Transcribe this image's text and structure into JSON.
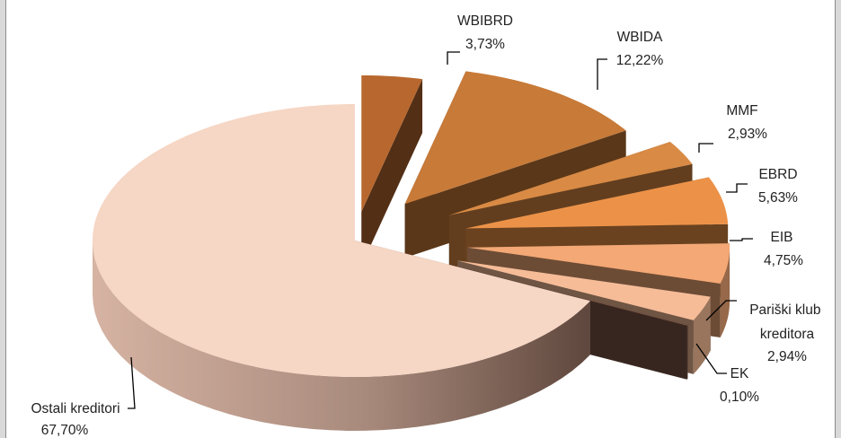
{
  "chart_data": {
    "type": "pie",
    "style": "3d-exploded",
    "legend": "none",
    "categories": [
      "WBIBRD",
      "WBIDA",
      "MMF",
      "EBRD",
      "EIB",
      "Pariški klub kreditora",
      "EK",
      "Ostali kreditori"
    ],
    "values": [
      3.73,
      12.22,
      2.93,
      5.63,
      4.75,
      2.94,
      0.1,
      67.7
    ],
    "value_labels": [
      "3,73%",
      "12,22%",
      "2,93%",
      "5,63%",
      "4,75%",
      "2,94%",
      "0,10%",
      "67,70%"
    ],
    "colors": [
      "#b8682e",
      "#c87a38",
      "#d98a44",
      "#ec9248",
      "#f3a875",
      "#f6bc98",
      "#7a5545",
      "#f6d6c4"
    ]
  }
}
